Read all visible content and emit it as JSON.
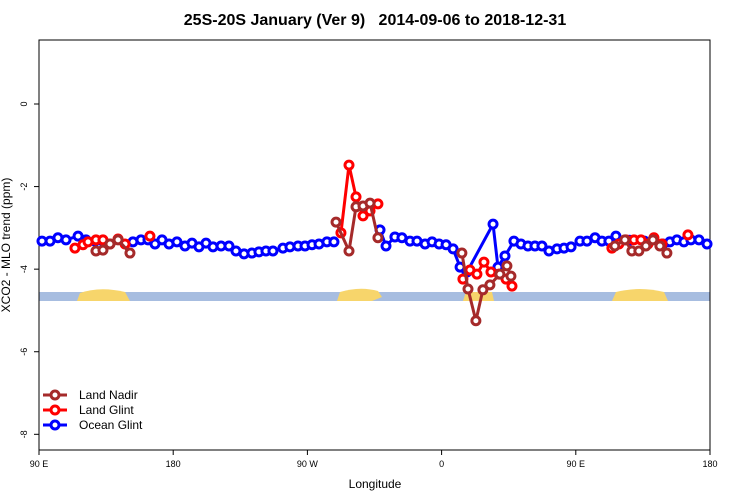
{
  "chart_data": {
    "type": "line",
    "title": "25S-20S January (Ver 9)   2014-09-06 to 2018-12-31",
    "x_label": "Longitude",
    "y_label": "XCO2 - MLO trend (ppm)",
    "xlim": [
      90,
      540
    ],
    "ylim": [
      -8.38,
      1.55
    ],
    "xticks": [
      {
        "value": 90,
        "label": "90 E"
      },
      180,
      {
        "value": 270,
        "label": "90 W"
      },
      {
        "value": 360,
        "label": "0"
      },
      {
        "value": 450,
        "label": "90 E"
      },
      {
        "value": 540,
        "label": "180"
      }
    ],
    "yticks": [
      0,
      -2,
      -4,
      -6,
      -8
    ],
    "legend": "bottom-left",
    "series": [
      {
        "name": "Land Nadir",
        "color": "#a52a2a",
        "x": [
          128.2,
          132.9,
          137.6,
          143.0,
          151.0,
          200,
          289.2,
          297.9,
          302.6,
          307.3,
          312.0,
          317.3,
          350,
          373.6,
          377.7,
          383.0,
          387.7,
          392.4,
          399.1,
          403.8,
          406.5,
          450,
          476.2,
          482.9,
          487.6,
          492.3,
          497.0,
          501.7,
          506.4,
          511.1
        ],
        "values": [
          -3.56,
          -3.54,
          -3.39,
          -3.29,
          -3.61,
          null,
          -2.86,
          -3.56,
          -2.49,
          -2.47,
          -2.4,
          -3.24,
          null,
          -3.61,
          -4.48,
          -5.25,
          -4.5,
          -4.38,
          -4.12,
          -3.92,
          -4.17,
          null,
          -3.44,
          -3.29,
          -3.56,
          -3.56,
          -3.44,
          -3.29,
          -3.44,
          -3.61
        ]
      },
      {
        "name": "Land Glint",
        "color": "#ff0000",
        "x": [
          114.1,
          119.5,
          122.9,
          128.2,
          132.9,
          137.6,
          143.0,
          147.7,
          155,
          164.4,
          250,
          292.5,
          297.9,
          302.6,
          307.3,
          312.0,
          317.3,
          350,
          374.3,
          379.0,
          383.7,
          388.4,
          393.1,
          398.5,
          403.2,
          407.2,
          450,
          474.2,
          478.9,
          483.6,
          489.0,
          493.7,
          498.4,
          502.4,
          507.8,
          515,
          525.2
        ],
        "values": [
          -3.49,
          -3.41,
          -3.34,
          -3.29,
          -3.29,
          -3.39,
          -3.27,
          -3.39,
          null,
          -3.2,
          null,
          -3.12,
          -1.48,
          -2.25,
          -2.71,
          -2.59,
          -2.42,
          null,
          -4.24,
          -4.02,
          -4.12,
          -3.83,
          -4.07,
          -4.12,
          -4.24,
          -4.41,
          null,
          -3.49,
          -3.39,
          -3.29,
          -3.29,
          -3.29,
          -3.39,
          -3.24,
          -3.39,
          null,
          -3.17
        ]
      },
      {
        "name": "Ocean Glint",
        "color": "#0000ff",
        "x": [
          92.0,
          97.4,
          102.7,
          108.1,
          116.2,
          121.5,
          127.6,
          132.9,
          153.0,
          158.4,
          163.1,
          167.8,
          172.5,
          177.2,
          182.5,
          187.9,
          192.6,
          197.3,
          202.0,
          206.7,
          212.1,
          217.4,
          222.1,
          227.5,
          232.8,
          237.5,
          242.2,
          246.9,
          253.6,
          258.3,
          263.7,
          268.4,
          273.1,
          277.8,
          283.1,
          287.8,
          300,
          318.7,
          322.7,
          328.7,
          333.4,
          338.8,
          343.5,
          348.9,
          353.6,
          358.3,
          363.0,
          367.7,
          372.4,
          377.0,
          394.5,
          397.8,
          402.5,
          408.5,
          413.2,
          417.9,
          422.6,
          427.3,
          432.0,
          437.4,
          442.1,
          446.8,
          452.8,
          457.5,
          462.9,
          467.5,
          472.2,
          476.9,
          486.0,
          496.0,
          508.4,
          513.1,
          517.8,
          522.5,
          527.2,
          532.6,
          538.0
        ],
        "values": [
          -3.32,
          -3.32,
          -3.24,
          -3.29,
          -3.2,
          -3.29,
          -3.32,
          -3.32,
          -3.34,
          -3.29,
          -3.29,
          -3.39,
          -3.29,
          -3.39,
          -3.34,
          -3.44,
          -3.37,
          -3.46,
          -3.37,
          -3.46,
          -3.44,
          -3.44,
          -3.56,
          -3.63,
          -3.61,
          -3.58,
          -3.56,
          -3.56,
          -3.49,
          -3.46,
          -3.44,
          -3.44,
          -3.41,
          -3.39,
          -3.34,
          -3.34,
          null,
          -3.05,
          -3.44,
          -3.22,
          -3.24,
          -3.32,
          -3.32,
          -3.39,
          -3.34,
          -3.39,
          -3.41,
          -3.51,
          -3.95,
          -4.07,
          -2.91,
          -3.95,
          -3.68,
          -3.32,
          -3.39,
          -3.44,
          -3.44,
          -3.44,
          -3.56,
          -3.51,
          -3.49,
          -3.46,
          -3.32,
          -3.32,
          -3.24,
          -3.32,
          -3.32,
          -3.2,
          -3.3,
          -3.32,
          -3.39,
          -3.34,
          -3.29,
          -3.34,
          -3.29,
          -3.29,
          -3.39
        ]
      }
    ]
  }
}
